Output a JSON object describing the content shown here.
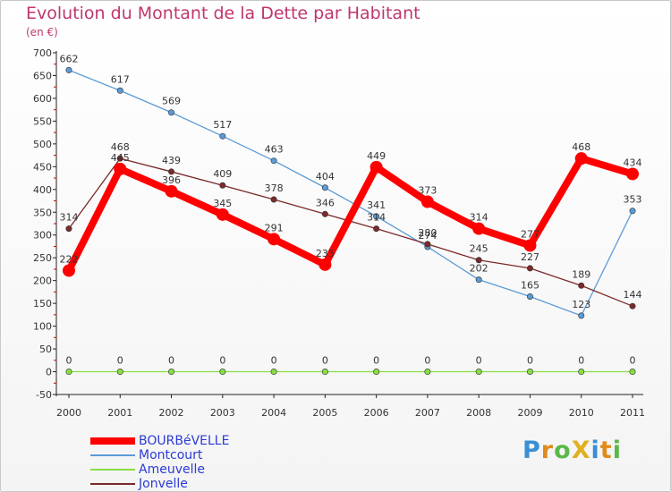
{
  "chart_data": {
    "type": "line",
    "title": "Evolution du Montant de la Dette par Habitant",
    "subtitle": "(en €)",
    "xlabel": "",
    "ylabel": "",
    "ylim": [
      -50,
      700
    ],
    "yticks": [
      -50,
      0,
      50,
      100,
      150,
      200,
      250,
      300,
      350,
      400,
      450,
      500,
      550,
      600,
      650,
      700
    ],
    "categories": [
      "2000",
      "2001",
      "2002",
      "2003",
      "2004",
      "2005",
      "2006",
      "2007",
      "2008",
      "2009",
      "2010",
      "2011"
    ],
    "series": [
      {
        "name": "BOURBéVELLE",
        "color": "#ff0000",
        "values": [
          222,
          445,
          396,
          345,
          291,
          235,
          449,
          373,
          314,
          277,
          468,
          434
        ]
      },
      {
        "name": "Montcourt",
        "color": "#5b9bd5",
        "values": [
          662,
          617,
          569,
          517,
          463,
          404,
          341,
          274,
          202,
          165,
          123,
          353
        ]
      },
      {
        "name": "Ameuvelle",
        "color": "#88dd44",
        "values": [
          0,
          0,
          0,
          0,
          0,
          0,
          0,
          0,
          0,
          0,
          0,
          0
        ]
      },
      {
        "name": "Jonvelle",
        "color": "#7b2a2a",
        "values": [
          314,
          468,
          439,
          409,
          378,
          346,
          314,
          280,
          245,
          227,
          189,
          144
        ]
      }
    ],
    "brand": {
      "text": "ProXiti",
      "letter_colors": [
        "#3a8fd4",
        "#e08a1e",
        "#5ab84a",
        "#e0b020",
        "#3a8fd4",
        "#e08a1e",
        "#5ab84a"
      ]
    }
  }
}
